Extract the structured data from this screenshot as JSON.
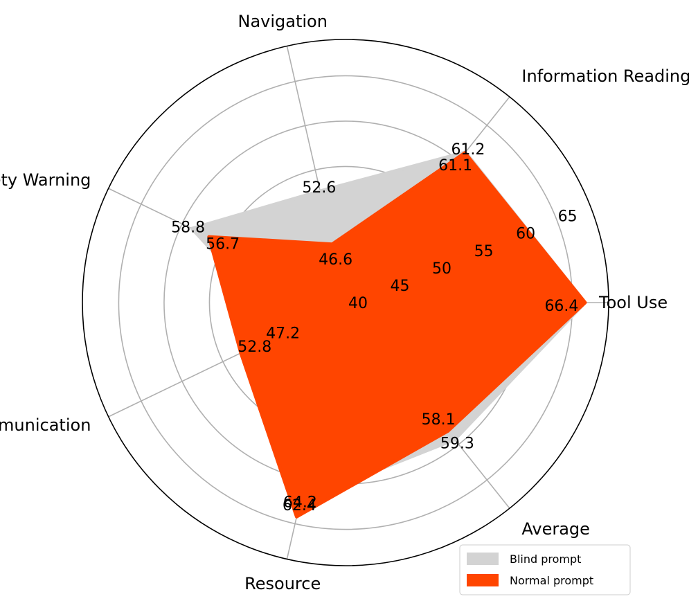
{
  "chart_data": {
    "type": "radar",
    "title": "",
    "axes": [
      "Tool Use",
      "Information Reading",
      "Navigation",
      "Safety Warning",
      "Communication",
      "Resource",
      "Average"
    ],
    "rlim": [
      40,
      69
    ],
    "rticks": [
      40,
      45,
      50,
      55,
      60,
      65
    ],
    "rtick_labels": [
      "40",
      "45",
      "50",
      "55",
      "60",
      "65"
    ],
    "grid": true,
    "legend_position": "lower-right",
    "series": [
      {
        "name": "Blind prompt",
        "color": "#d3d3d3",
        "values": [
          66.4,
          61.2,
          52.6,
          58.8,
          47.2,
          62.4,
          59.3
        ],
        "labels": [
          "66.4",
          "61.2",
          "52.6",
          "58.8",
          "47.2",
          "62.4",
          "59.3"
        ]
      },
      {
        "name": "Normal prompt",
        "color": "#ff4500",
        "values": [
          66.4,
          61.1,
          46.6,
          56.7,
          52.8,
          64.2,
          58.1
        ],
        "labels": [
          "66.4",
          "61.1",
          "46.6",
          "56.7",
          "52.8",
          "64.2",
          "58.1"
        ]
      }
    ]
  }
}
